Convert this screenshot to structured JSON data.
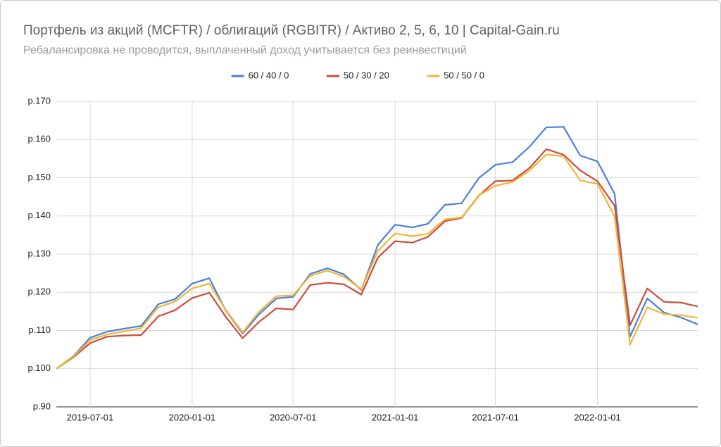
{
  "chart_data": {
    "type": "line",
    "title": "Портфель из акций (MCFTR) / облигаций (RGBITR) / Активо 2, 5, 6, 10 | Capital-Gain.ru",
    "subtitle": "Ребалансировка не проводится, выплаченный доход учитывается без реинвестиций",
    "x": [
      "2019-05-01",
      "2019-06-01",
      "2019-07-01",
      "2019-08-01",
      "2019-09-01",
      "2019-10-01",
      "2019-11-01",
      "2019-12-01",
      "2020-01-01",
      "2020-02-01",
      "2020-03-01",
      "2020-04-01",
      "2020-05-01",
      "2020-06-01",
      "2020-07-01",
      "2020-08-01",
      "2020-09-01",
      "2020-10-01",
      "2020-11-01",
      "2020-12-01",
      "2021-01-01",
      "2021-02-01",
      "2021-03-01",
      "2021-04-01",
      "2021-05-01",
      "2021-06-01",
      "2021-07-01",
      "2021-08-01",
      "2021-09-01",
      "2021-10-01",
      "2021-11-01",
      "2021-12-01",
      "2022-01-01",
      "2022-02-01",
      "2022-03-01",
      "2022-04-01",
      "2022-05-01",
      "2022-06-01",
      "2022-07-01"
    ],
    "series": [
      {
        "name": "60 / 40 / 0",
        "color": "#4a7fe0",
        "values": [
          100,
          103.3,
          108.1,
          109.7,
          110.5,
          111.2,
          116.9,
          118.2,
          122.3,
          123.7,
          115.4,
          109.2,
          114.3,
          118.4,
          118.8,
          124.8,
          126.3,
          124.7,
          120.6,
          132.4,
          137.7,
          137.0,
          137.9,
          142.9,
          143.3,
          149.9,
          153.4,
          154.1,
          158.2,
          163.2,
          163.3,
          155.8,
          154.3,
          145.8,
          108.4,
          118.4,
          114.7,
          113.4,
          111.6
        ]
      },
      {
        "name": "50 / 30 / 20",
        "color": "#d14a3a",
        "values": [
          100,
          103.0,
          106.7,
          108.4,
          108.7,
          108.8,
          113.7,
          115.3,
          118.5,
          119.9,
          113.7,
          108.0,
          112.3,
          115.8,
          115.5,
          121.9,
          122.5,
          122.1,
          119.4,
          129.1,
          133.4,
          133.0,
          134.5,
          138.6,
          139.5,
          145.3,
          149.1,
          149.3,
          152.6,
          157.5,
          156.0,
          151.9,
          149.1,
          142.7,
          111.4,
          121.0,
          117.5,
          117.3,
          116.3
        ]
      },
      {
        "name": "50 / 50 / 0",
        "color": "#f2b632",
        "values": [
          100,
          103.2,
          107.5,
          109.0,
          109.8,
          110.6,
          116.1,
          117.6,
          121.0,
          122.3,
          115.5,
          109.5,
          115.0,
          119.0,
          119.2,
          124.3,
          125.7,
          124.1,
          120.8,
          130.8,
          135.4,
          134.7,
          135.3,
          139.1,
          139.6,
          145.4,
          147.9,
          148.9,
          151.9,
          156.1,
          155.6,
          149.3,
          148.4,
          139.9,
          106.3,
          116.1,
          114.3,
          114.0,
          113.3
        ]
      }
    ],
    "xlim": [
      "2019-05-01",
      "2022-07-01"
    ],
    "xticks": [
      "2019-07-01",
      "2020-01-01",
      "2020-07-01",
      "2021-01-01",
      "2021-07-01",
      "2022-01-01"
    ],
    "ylim": [
      90,
      170
    ],
    "yticks": [
      {
        "value": 90,
        "label": "р.90"
      },
      {
        "value": 100,
        "label": "р.100"
      },
      {
        "value": 110,
        "label": "р.110"
      },
      {
        "value": 120,
        "label": "р.120"
      },
      {
        "value": 130,
        "label": "р.130"
      },
      {
        "value": 140,
        "label": "р.140"
      },
      {
        "value": 150,
        "label": "р.150"
      },
      {
        "value": 160,
        "label": "р.160"
      },
      {
        "value": 170,
        "label": "р.170"
      }
    ],
    "grid": true,
    "legend": "top"
  }
}
